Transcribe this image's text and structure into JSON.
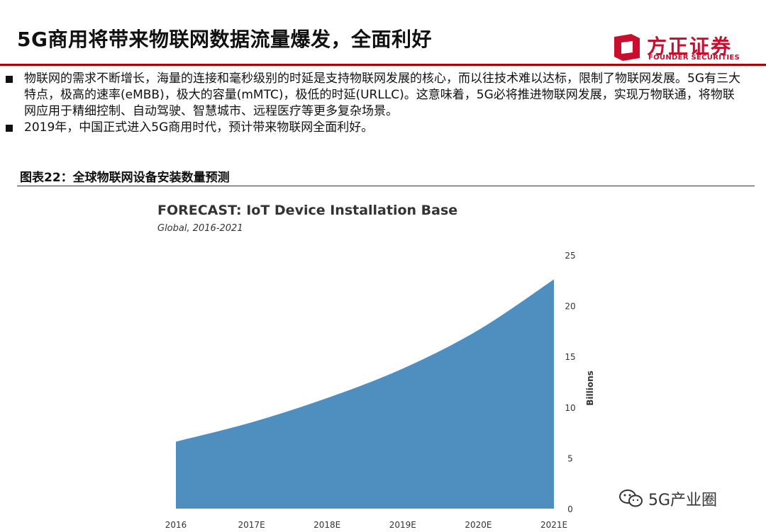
{
  "header": {
    "title": "5G商用将带来物联网数据流量爆发，全面利好",
    "logo_cn": "方正证券",
    "logo_en": "FOUNDER SECURITIES",
    "accent_color": "#c8102e"
  },
  "bullets": [
    "物联网的需求不断增长，海量的连接和毫秒级别的时延是支持物联网发展的核心，而以往技术难以达标，限制了物联网发展。5G有三大特点，极高的速率(eMBB)，极大的容量(mMTC)，极低的时延(URLLC)。这意味着，5G必将推进物联网发展，实现万物联通，将物联网应用于精细控制、自动驾驶、智慧城市、远程医疗等更多复杂场景。",
    "2019年，中国正式进入5G商用时代，预计带来物联网全面利好。"
  ],
  "figure": {
    "caption": "图表22：全球物联网设备安装数量预测"
  },
  "chart_data": {
    "type": "area",
    "title": "FORECAST: IoT Device Installation Base",
    "subtitle": "Global, 2016-2021",
    "categories": [
      "2016",
      "2017E",
      "2018E",
      "2019E",
      "2020E",
      "2021E"
    ],
    "values": [
      6.6,
      8.5,
      10.9,
      13.8,
      17.6,
      22.6
    ],
    "ylabel": "Billions",
    "ylim": [
      0,
      25
    ],
    "yticks": [
      0,
      5,
      10,
      15,
      20,
      25
    ],
    "y_axis_position": "right",
    "grid": false,
    "fill_color": "#4f8fbf"
  },
  "watermark": {
    "text": "5G产业圈",
    "icon": "wechat-icon"
  }
}
